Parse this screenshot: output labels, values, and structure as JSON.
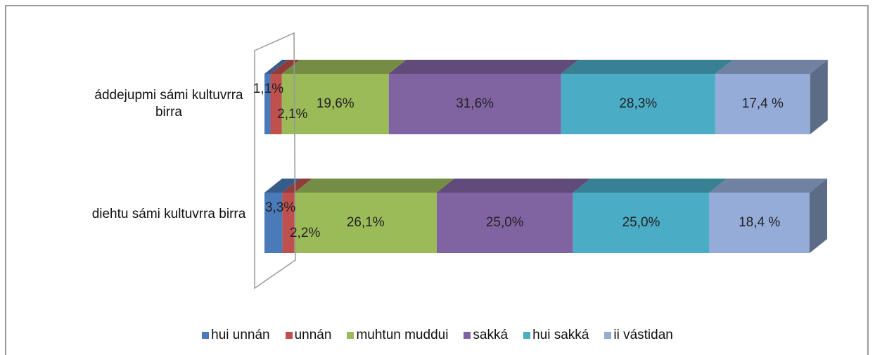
{
  "chart_data": {
    "type": "bar3d_stacked_horizontal",
    "categories": [
      "áddejupmi sámi kultuvrra birra",
      "diehtu sámi kultuvrra birra"
    ],
    "xlim": [
      0,
      100
    ],
    "series": [
      {
        "name": "hui unnán",
        "color": "#4a7ab8",
        "values": [
          1.1,
          3.3
        ],
        "value_labels": [
          "1,1%",
          "3,3%"
        ]
      },
      {
        "name": "unnán",
        "color": "#c0504d",
        "values": [
          2.1,
          2.2
        ],
        "value_labels": [
          "2,1%",
          "2,2%"
        ]
      },
      {
        "name": "muhtun muddui",
        "color": "#9bbb59",
        "values": [
          19.6,
          26.1
        ],
        "value_labels": [
          "19,6%",
          "26,1%"
        ]
      },
      {
        "name": "sakká",
        "color": "#8064a2",
        "values": [
          31.6,
          25.0
        ],
        "value_labels": [
          "31,6%",
          "25,0%"
        ]
      },
      {
        "name": "hui sakká",
        "color": "#4bacc6",
        "values": [
          28.3,
          25.0
        ],
        "value_labels": [
          "28,3%",
          "25,0%"
        ]
      },
      {
        "name": "ii vástidan",
        "color": "#95acd8",
        "values": [
          17.4,
          18.4
        ],
        "value_labels": [
          "17,4 %",
          "18,4 %"
        ]
      }
    ],
    "legend": "bottom"
  }
}
